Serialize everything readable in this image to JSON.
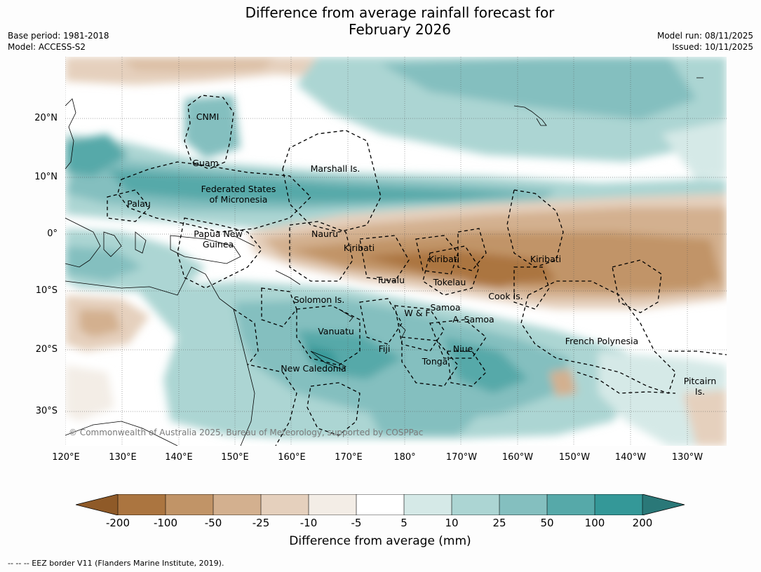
{
  "title_line1": "Difference from average rainfall forecast for",
  "title_line2": "February 2026",
  "meta": {
    "base_period": "Base period: 1981-2018",
    "model": "Model: ACCESS-S2",
    "model_run": "Model run: 08/11/2025",
    "issued": "Issued: 10/11/2025"
  },
  "lat_labels": [
    "20°N",
    "10°N",
    "0°",
    "10°S",
    "20°S",
    "30°S"
  ],
  "lon_labels": [
    "120°E",
    "130°E",
    "140°E",
    "150°E",
    "160°E",
    "170°E",
    "180°",
    "170°W",
    "160°W",
    "150°W",
    "140°W",
    "130°W"
  ],
  "places": {
    "cnmi": "CNMI",
    "guam": "Guam",
    "marshall": "Marshall Is.",
    "fsm1": "Federated States",
    "fsm2": "of Micronesia",
    "palau": "Palau",
    "png1": "Papua New",
    "png2": "Guinea",
    "nauru": "Nauru",
    "kiribati1": "Kiribati",
    "kiribati2": "Kiribati",
    "kiribati3": "Kiribati",
    "tuvalu": "Tuvalu",
    "tokelau": "Tokelau",
    "cook": "Cook Is.",
    "solomon": "Solomon Is.",
    "samoa": "Samoa",
    "wf": "W & F",
    "asamoa": "A. Samoa",
    "vanuatu": "Vanuatu",
    "fiji": "Fiji",
    "niue": "Niue",
    "tonga": "Tonga",
    "newcal": "New Caledonia",
    "frpoly": "French Polynesia",
    "pitcairn1": "Pitcairn",
    "pitcairn2": "Is."
  },
  "copyright": "© Commonwealth of Australia 2025, Bureau of Meteorology, supported by COSPPac",
  "colorbar": {
    "ticks": [
      "-200",
      "-100",
      "-50",
      "-25",
      "-10",
      "-5",
      "5",
      "10",
      "25",
      "50",
      "100",
      "200"
    ],
    "colors": [
      "#8f5a28",
      "#ab7540",
      "#c19467",
      "#d3b08f",
      "#e5d0bd",
      "#f3ede6",
      "#ffffff",
      "#d5e9e7",
      "#acd5d3",
      "#84bfbf",
      "#56a9a9",
      "#349898",
      "#2a7878"
    ],
    "label": "Difference from average (mm)"
  },
  "footnote": "--  --  -- EEZ border V11 (Flanders Marine Institute, 2019)."
}
